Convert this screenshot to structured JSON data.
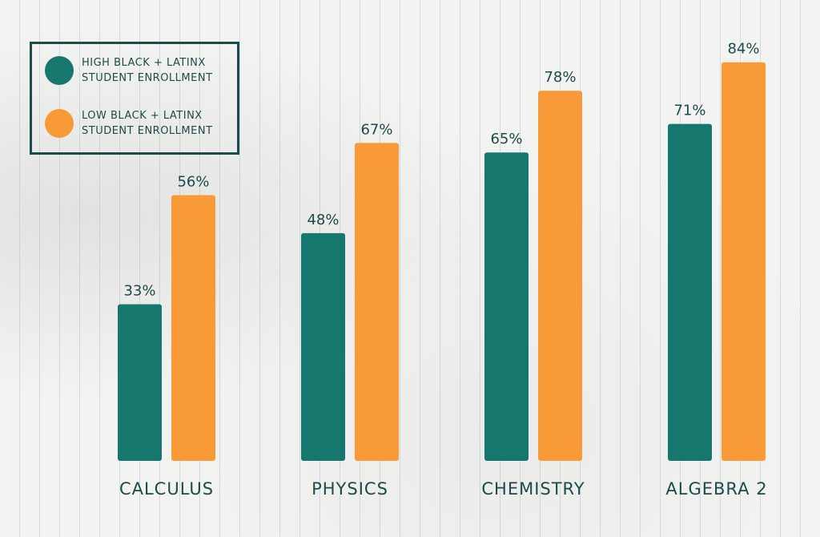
{
  "chart_data": {
    "type": "bar",
    "categories": [
      "CALCULUS",
      "PHYSICS",
      "CHEMISTRY",
      "ALGEBRA 2"
    ],
    "series": [
      {
        "name": "HIGH BLACK + LATINX STUDENT ENROLLMENT",
        "color": "#16776f",
        "values": [
          33,
          48,
          65,
          71
        ],
        "value_labels": [
          "33%",
          "48%",
          "65%",
          "71%"
        ]
      },
      {
        "name": "LOW BLACK + LATINX STUDENT ENROLLMENT",
        "color": "#f99a38",
        "values": [
          56,
          67,
          78,
          84
        ],
        "value_labels": [
          "56%",
          "67%",
          "78%",
          "84%"
        ]
      }
    ],
    "legend": "top-left"
  }
}
